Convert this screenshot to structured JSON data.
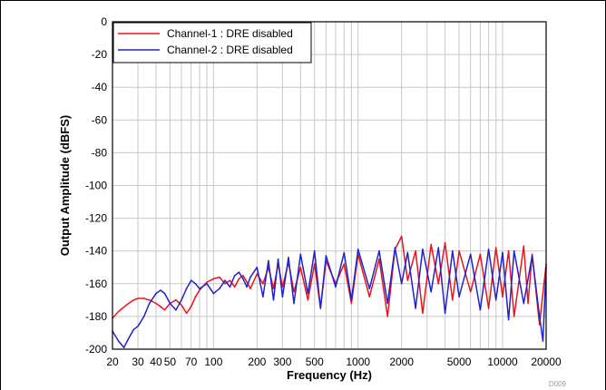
{
  "chart_data": {
    "type": "line",
    "xscale": "log",
    "xlim": [
      20,
      20000
    ],
    "ylim": [
      -200,
      0
    ],
    "xlabel": "Frequency (Hz)",
    "ylabel": "Output Amplitude (dBFS)",
    "x_ticks": [
      20,
      30,
      40,
      50,
      70,
      100,
      200,
      300,
      500,
      1000,
      2000,
      5000,
      10000,
      20000
    ],
    "x_tick_labels": [
      "20",
      "30",
      "40",
      "50",
      "70",
      "100",
      "200",
      "300",
      "500",
      "1000",
      "2000",
      "5000",
      "10000",
      "20000"
    ],
    "y_ticks": [
      0,
      -20,
      -40,
      -60,
      -80,
      -100,
      -120,
      -140,
      -160,
      -180,
      -200
    ],
    "y_tick_labels": [
      "0",
      "-20",
      "-40",
      "-60",
      "-80",
      "-100",
      "-120",
      "-140",
      "-160",
      "-180",
      "-200"
    ],
    "grid": true,
    "legend_position": "top-left",
    "colors": {
      "channel1": "#e8141b",
      "channel2": "#1f23c9"
    },
    "series": [
      {
        "name": "Channel-1 : DRE disabled",
        "color": "#e8141b",
        "x": [
          20,
          22,
          25,
          28,
          30,
          33,
          36,
          40,
          43,
          46,
          50,
          55,
          60,
          65,
          70,
          75,
          80,
          90,
          100,
          110,
          120,
          130,
          140,
          150,
          160,
          170,
          180,
          200,
          220,
          240,
          260,
          280,
          300,
          330,
          360,
          400,
          450,
          500,
          550,
          600,
          700,
          800,
          900,
          1000,
          1200,
          1400,
          1600,
          1800,
          2000,
          2200,
          2500,
          2800,
          3200,
          3600,
          4000,
          4500,
          5000,
          6000,
          7000,
          8000,
          9000,
          10000,
          11000,
          12000,
          14000,
          15000,
          16000,
          18000,
          20000
        ],
        "y": [
          -181,
          -177,
          -173,
          -170,
          -169,
          -169,
          -170,
          -172,
          -174,
          -176,
          -172,
          -170,
          -173,
          -178,
          -174,
          -168,
          -164,
          -159,
          -157,
          -156,
          -160,
          -158,
          -162,
          -157,
          -155,
          -159,
          -163,
          -154,
          -160,
          -150,
          -163,
          -148,
          -162,
          -147,
          -165,
          -150,
          -170,
          -148,
          -175,
          -146,
          -160,
          -148,
          -172,
          -142,
          -168,
          -145,
          -180,
          -139,
          -131,
          -158,
          -140,
          -178,
          -136,
          -160,
          -135,
          -170,
          -140,
          -165,
          -142,
          -175,
          -138,
          -168,
          -140,
          -180,
          -137,
          -172,
          -142,
          -185,
          -148
        ]
      },
      {
        "name": "Channel-2 : DRE disabled",
        "color": "#1f23c9",
        "x": [
          20,
          22,
          24,
          26,
          28,
          30,
          33,
          36,
          40,
          43,
          46,
          50,
          55,
          60,
          65,
          70,
          75,
          80,
          90,
          100,
          110,
          120,
          130,
          140,
          150,
          160,
          170,
          180,
          200,
          220,
          240,
          260,
          280,
          300,
          330,
          360,
          400,
          450,
          500,
          550,
          600,
          700,
          800,
          900,
          1000,
          1200,
          1400,
          1600,
          1800,
          2000,
          2200,
          2500,
          2800,
          3200,
          3600,
          4000,
          4500,
          5000,
          6000,
          7000,
          8000,
          9000,
          10000,
          11000,
          12000,
          14000,
          16000,
          18000,
          19000,
          20000
        ],
        "y": [
          -189,
          -195,
          -199,
          -193,
          -188,
          -186,
          -180,
          -172,
          -166,
          -164,
          -166,
          -172,
          -176,
          -170,
          -163,
          -158,
          -160,
          -163,
          -160,
          -166,
          -163,
          -158,
          -162,
          -155,
          -153,
          -157,
          -162,
          -156,
          -150,
          -168,
          -146,
          -170,
          -145,
          -168,
          -144,
          -172,
          -142,
          -166,
          -140,
          -175,
          -143,
          -162,
          -141,
          -170,
          -139,
          -163,
          -140,
          -172,
          -138,
          -160,
          -141,
          -175,
          -139,
          -165,
          -138,
          -178,
          -140,
          -168,
          -142,
          -176,
          -139,
          -170,
          -141,
          -182,
          -140,
          -172,
          -143,
          -180,
          -195,
          -150
        ]
      }
    ],
    "annotation": "D009"
  }
}
